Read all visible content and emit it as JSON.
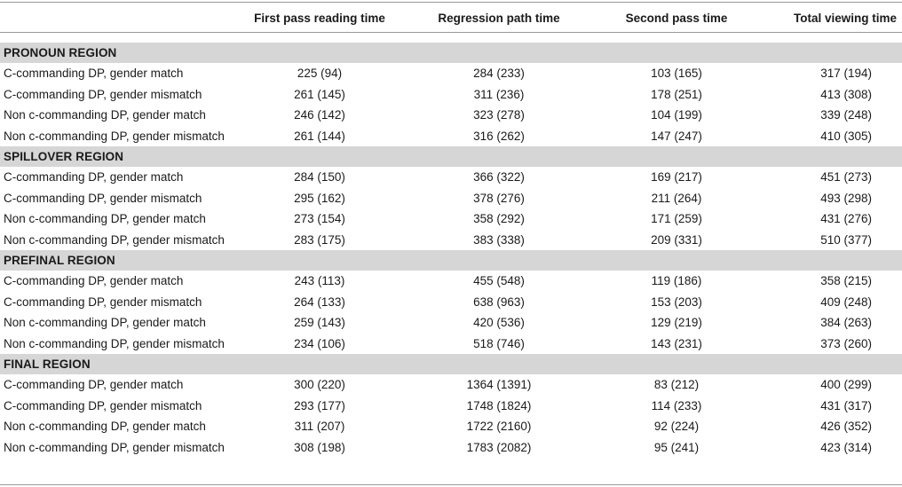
{
  "headers": [
    "",
    "First pass reading time",
    "Regression path time",
    "Second pass time",
    "Total viewing time"
  ],
  "sections": [
    {
      "title": "PRONOUN REGION",
      "rows": [
        {
          "label": "C-commanding DP, gender match",
          "values": [
            "225 (94)",
            "284 (233)",
            "103 (165)",
            "317 (194)"
          ]
        },
        {
          "label": "C-commanding DP, gender mismatch",
          "values": [
            "261 (145)",
            "311 (236)",
            "178 (251)",
            "413 (308)"
          ]
        },
        {
          "label": "Non c-commanding DP, gender match",
          "values": [
            "246 (142)",
            "323 (278)",
            "104 (199)",
            "339 (248)"
          ]
        },
        {
          "label": "Non c-commanding DP, gender mismatch",
          "values": [
            "261 (144)",
            "316 (262)",
            "147 (247)",
            "410 (305)"
          ]
        }
      ]
    },
    {
      "title": "SPILLOVER REGION",
      "rows": [
        {
          "label": "C-commanding DP, gender match",
          "values": [
            "284 (150)",
            "366 (322)",
            "169 (217)",
            "451 (273)"
          ]
        },
        {
          "label": "C-commanding DP, gender mismatch",
          "values": [
            "295 (162)",
            "378 (276)",
            "211 (264)",
            "493 (298)"
          ]
        },
        {
          "label": "Non c-commanding DP, gender match",
          "values": [
            "273 (154)",
            "358 (292)",
            "171 (259)",
            "431 (276)"
          ]
        },
        {
          "label": "Non c-commanding DP, gender mismatch",
          "values": [
            "283 (175)",
            "383 (338)",
            "209 (331)",
            "510 (377)"
          ]
        }
      ]
    },
    {
      "title": "PREFINAL REGION",
      "rows": [
        {
          "label": "C-commanding DP, gender match",
          "values": [
            "243 (113)",
            "455 (548)",
            "119 (186)",
            "358 (215)"
          ]
        },
        {
          "label": "C-commanding DP, gender mismatch",
          "values": [
            "264 (133)",
            "638 (963)",
            "153 (203)",
            "409 (248)"
          ]
        },
        {
          "label": "Non c-commanding DP, gender match",
          "values": [
            "259 (143)",
            "420 (536)",
            "129 (219)",
            "384 (263)"
          ]
        },
        {
          "label": "Non c-commanding DP, gender mismatch",
          "values": [
            "234 (106)",
            "518 (746)",
            "143 (231)",
            "373 (260)"
          ]
        }
      ]
    },
    {
      "title": "FINAL REGION",
      "rows": [
        {
          "label": "C-commanding DP, gender match",
          "values": [
            "300 (220)",
            "1364 (1391)",
            "83 (212)",
            "400 (299)"
          ]
        },
        {
          "label": "C-commanding DP, gender mismatch",
          "values": [
            "293 (177)",
            "1748 (1824)",
            "114 (233)",
            "431 (317)"
          ]
        },
        {
          "label": "Non c-commanding DP, gender match",
          "values": [
            "311 (207)",
            "1722 (2160)",
            "92 (224)",
            "426 (352)"
          ]
        },
        {
          "label": "Non c-commanding DP, gender mismatch",
          "values": [
            "308 (198)",
            "1783 (2082)",
            "95 (241)",
            "423 (314)"
          ]
        }
      ]
    }
  ]
}
